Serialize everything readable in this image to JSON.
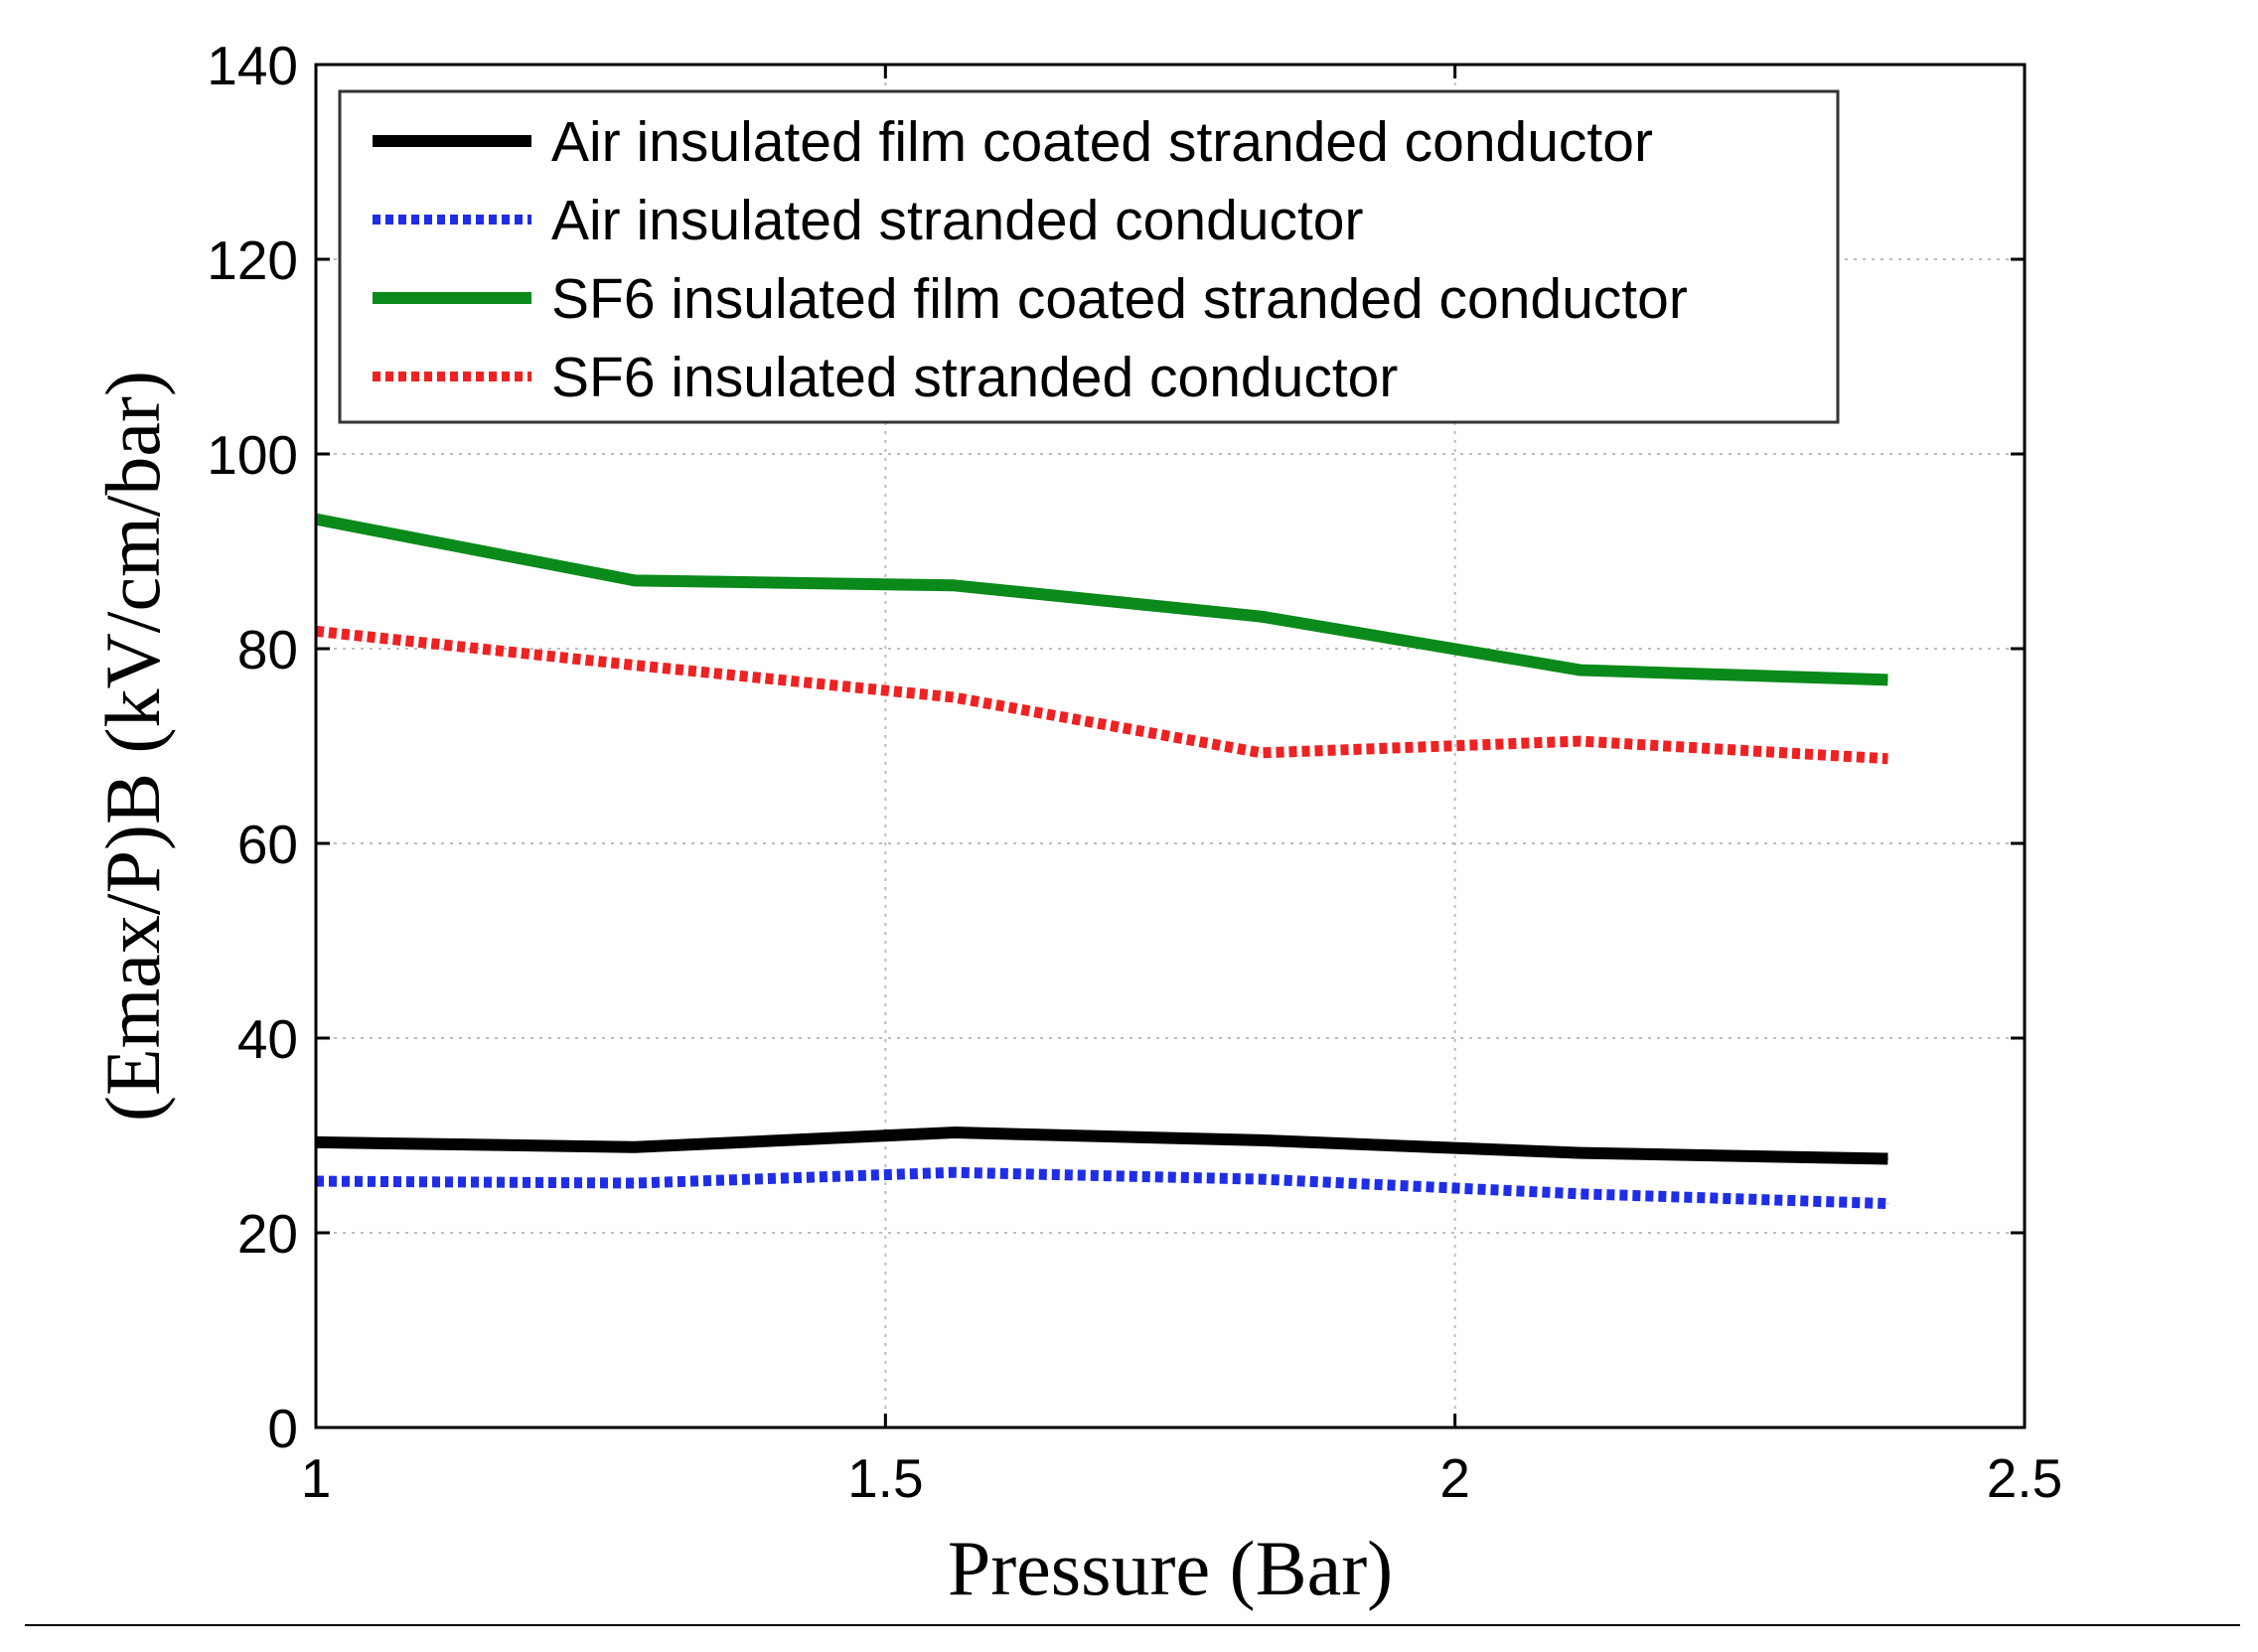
{
  "chart_data": {
    "type": "line",
    "title": "",
    "xlabel": "Pressure (Bar)",
    "ylabel": "(Emax/P)B (kV/cm/bar)",
    "xlim": [
      1,
      2.5
    ],
    "ylim": [
      0,
      140
    ],
    "xticks": [
      1,
      1.5,
      2,
      2.5
    ],
    "xtick_labels": [
      "1",
      "1.5",
      "2",
      "2.5"
    ],
    "yticks": [
      0,
      20,
      40,
      60,
      80,
      100,
      120,
      140
    ],
    "ytick_labels": [
      "0",
      "20",
      "40",
      "60",
      "80",
      "100",
      "120",
      "140"
    ],
    "grid": true,
    "legend_position": "top-left",
    "series": [
      {
        "name": "Air insulated film coated stranded conductor",
        "color": "#000000",
        "style": "solid",
        "x": [
          1.0,
          1.28,
          1.56,
          1.83,
          2.11,
          2.38
        ],
        "y": [
          29.3,
          28.8,
          30.3,
          29.5,
          28.2,
          27.6
        ]
      },
      {
        "name": "Air insulated stranded conductor",
        "color": "#1f2ee6",
        "style": "dotted",
        "x": [
          1.0,
          1.28,
          1.56,
          1.83,
          2.11,
          2.38
        ],
        "y": [
          25.3,
          25.1,
          26.2,
          25.5,
          24.0,
          23.0
        ]
      },
      {
        "name": "SF6 insulated film coated stranded conductor",
        "color": "#0a8a1a",
        "style": "solid",
        "x": [
          1.0,
          1.28,
          1.56,
          1.83,
          2.11,
          2.38
        ],
        "y": [
          93.3,
          87.0,
          86.5,
          83.3,
          77.8,
          76.8
        ]
      },
      {
        "name": "SF6 insulated stranded conductor",
        "color": "#ee2222",
        "style": "dotted",
        "x": [
          1.0,
          1.28,
          1.56,
          1.83,
          2.11,
          2.38
        ],
        "y": [
          81.8,
          78.3,
          75.0,
          69.3,
          70.5,
          68.7
        ]
      }
    ]
  }
}
